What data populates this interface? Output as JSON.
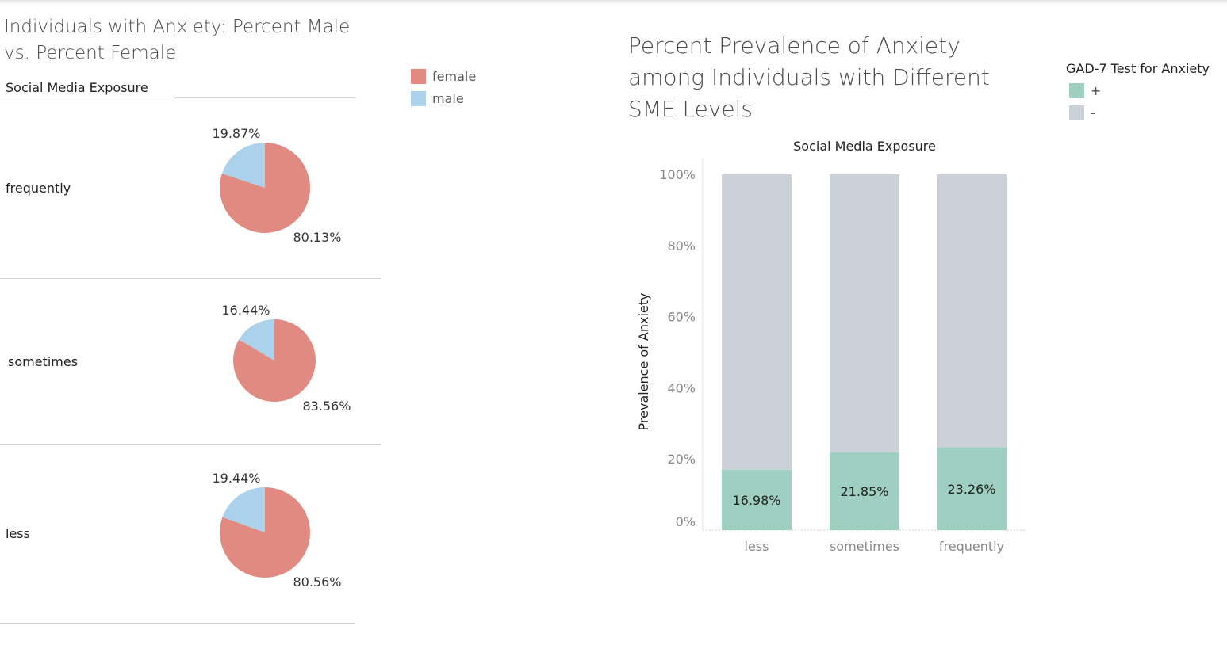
{
  "colors": {
    "female": "#e08a82",
    "male": "#abd2ea",
    "positive": "#9fcfc0",
    "negative": "#cbd1d9"
  },
  "left": {
    "title": "Individuals with Anxiety: Percent Male vs. Percent Female",
    "column_header": "Social Media Exposure",
    "legend": [
      {
        "label": "female",
        "color": "#e08a82"
      },
      {
        "label": "male",
        "color": "#abd2ea"
      }
    ]
  },
  "right": {
    "title": "Percent Prevalence of Anxiety among Individuals with Different SME Levels",
    "legend_title": "GAD-7 Test for Anxiety",
    "legend": [
      {
        "label": "+",
        "color": "#9fcfc0"
      },
      {
        "label": "-",
        "color": "#cbd1d9"
      }
    ]
  },
  "chart_data": [
    {
      "type": "pie",
      "title": "Individuals with Anxiety: Percent Male vs. Percent Female",
      "facet_label": "Social Media Exposure",
      "series": [
        "female",
        "male"
      ],
      "panels": [
        {
          "category": "frequently",
          "female": 80.13,
          "male": 19.87,
          "female_label": "80.13%",
          "male_label": "19.87%"
        },
        {
          "category": "sometimes",
          "female": 83.56,
          "male": 16.44,
          "female_label": "83.56%",
          "male_label": "16.44%"
        },
        {
          "category": "less",
          "female": 80.56,
          "male": 19.44,
          "female_label": "80.56%",
          "male_label": "19.44%"
        }
      ]
    },
    {
      "type": "bar",
      "stacked": true,
      "title": "Percent Prevalence of Anxiety among Individuals with Different SME Levels",
      "xlabel": "Social Media Exposure",
      "ylabel": "Prevalence of Anxiety",
      "categories": [
        "less",
        "sometimes",
        "frequently"
      ],
      "series": [
        {
          "name": "+",
          "values": [
            16.98,
            21.85,
            23.26
          ],
          "labels": [
            "16.98%",
            "21.85%",
            "23.26%"
          ]
        },
        {
          "name": "-",
          "values": [
            83.02,
            78.15,
            76.74
          ]
        }
      ],
      "ylim": [
        0,
        100
      ],
      "yticks": [
        "0%",
        "20%",
        "40%",
        "60%",
        "80%",
        "100%"
      ],
      "legend_title": "GAD-7 Test for Anxiety"
    }
  ]
}
